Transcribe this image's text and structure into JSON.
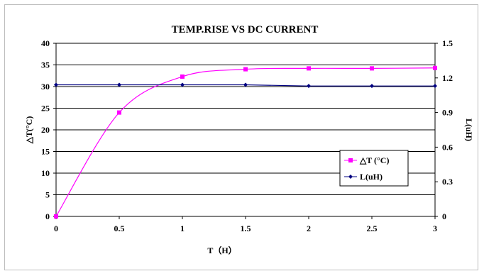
{
  "chart_data": {
    "type": "line",
    "title": "TEMP.RISE VS DC CURRENT",
    "xlabel": "T（H）",
    "ylabel_left": "△T(°C)",
    "ylabel_right": "L(uH)",
    "x": [
      0,
      0.5,
      1,
      1.5,
      2,
      2.5,
      3
    ],
    "x_ticks": [
      "0",
      "0.5",
      "1",
      "1.5",
      "2",
      "2.5",
      "3"
    ],
    "xlim": [
      0,
      3
    ],
    "ylim_left": [
      0,
      40
    ],
    "y_ticks_left": [
      "0",
      "5",
      "10",
      "15",
      "20",
      "25",
      "30",
      "35",
      "40"
    ],
    "ylim_right": [
      0,
      1.5
    ],
    "y_ticks_right": [
      "0",
      "0.3",
      "0.6",
      "0.9",
      "1.2",
      "1.5"
    ],
    "grid": "horizontal",
    "legend_position": "right",
    "series": [
      {
        "name": "△T (°C)",
        "axis": "left",
        "color": "#ff00ff",
        "marker": "square",
        "smooth": true,
        "values": [
          0,
          24,
          32.3,
          34,
          34.2,
          34.2,
          34.3
        ]
      },
      {
        "name": "L(uH)",
        "axis": "right",
        "color": "#000080",
        "marker": "diamond",
        "smooth": false,
        "values": [
          1.14,
          1.14,
          1.14,
          1.14,
          1.13,
          1.13,
          1.13
        ]
      }
    ]
  }
}
